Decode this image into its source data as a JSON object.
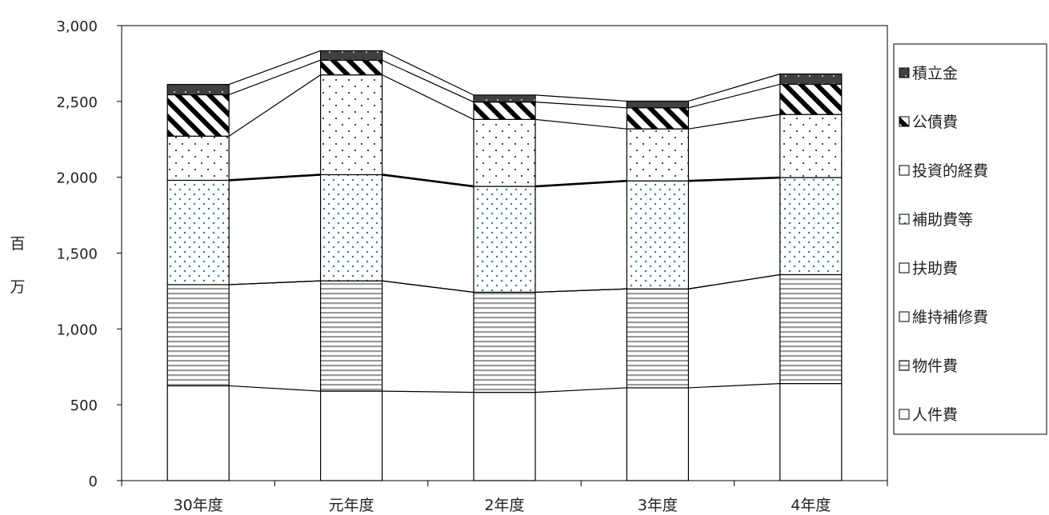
{
  "chart_data": {
    "type": "bar",
    "stacked": true,
    "categories": [
      "30年度",
      "元年度",
      "2年度",
      "3年度",
      "4年度"
    ],
    "ylabel": [
      "百",
      "万"
    ],
    "ylim": [
      0,
      3000
    ],
    "yticks": [
      0,
      500,
      1000,
      1500,
      2000,
      2500,
      3000
    ],
    "ytick_labels": [
      "0",
      "500",
      "1,000",
      "1,500",
      "2,000",
      "2,500",
      "3,000"
    ],
    "legend_position": "right",
    "series": [
      {
        "name": "人件費",
        "pattern": "blank",
        "values": [
          625,
          590,
          582,
          612,
          640
        ]
      },
      {
        "name": "物件費",
        "pattern": "hlines",
        "values": [
          667,
          727,
          660,
          652,
          718
        ]
      },
      {
        "name": "維持補修費",
        "pattern": "blank",
        "values": [
          0,
          0,
          0,
          0,
          0
        ]
      },
      {
        "name": "扶助費",
        "pattern": "blank",
        "values": [
          0,
          0,
          0,
          0,
          0
        ]
      },
      {
        "name": "補助費等",
        "pattern": "bluedots",
        "values": [
          688,
          700,
          698,
          712,
          640
        ]
      },
      {
        "name": "投資的経費",
        "pattern": "blackdots",
        "values": [
          291,
          658,
          441,
          343,
          416
        ]
      },
      {
        "name": "公債費",
        "pattern": "diag",
        "values": [
          273,
          97,
          115,
          139,
          199
        ]
      },
      {
        "name": "積立金",
        "pattern": "dark",
        "values": [
          68,
          62,
          46,
          44,
          68
        ]
      }
    ],
    "legend_order": [
      "積立金",
      "公債費",
      "投資的経費",
      "補助費等",
      "扶助費",
      "維持補修費",
      "物件費",
      "人件費"
    ],
    "colors": {
      "dots_blue": "#2e75b6",
      "dark_fill": "#404040",
      "axis": "#000000"
    }
  }
}
